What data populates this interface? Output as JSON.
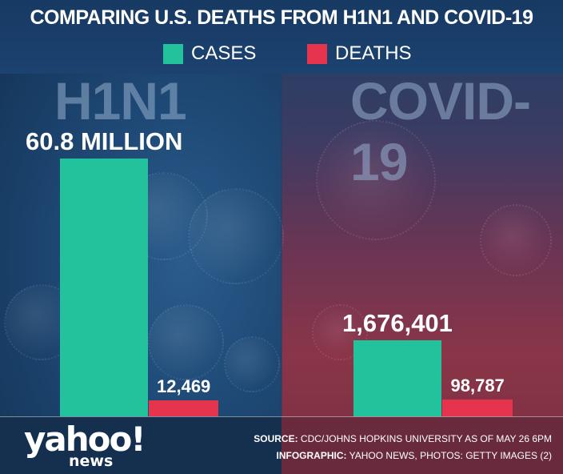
{
  "chart_data": {
    "type": "bar",
    "title": "COMPARING U.S. DEATHS FROM H1N1 AND COVID-19",
    "legend": [
      {
        "name": "CASES",
        "color": "#21c29c"
      },
      {
        "name": "DEATHS",
        "color": "#e6344f"
      }
    ],
    "legend_placement": "top-center",
    "groups": [
      {
        "name": "H1N1",
        "bars": [
          {
            "series": "CASES",
            "value": 60800000,
            "label": "60.8 MILLION"
          },
          {
            "series": "DEATHS",
            "value": 12469,
            "label": "12,469"
          }
        ]
      },
      {
        "name": "COVID-19",
        "bars": [
          {
            "series": "CASES",
            "value": 1676401,
            "label": "1,676,401"
          },
          {
            "series": "DEATHS",
            "value": 98787,
            "label": "98,787"
          }
        ]
      }
    ],
    "grid": false
  },
  "footer": {
    "logo_main": "yahoo!",
    "logo_sub": "news",
    "source_label": "SOURCE:",
    "source_text": "CDC/JOHNS HOPKINS UNIVERSITY AS OF MAY 26 6PM",
    "infographic_label": "INFOGRAPHIC:",
    "infographic_text": "YAHOO NEWS, PHOTOS: GETTY IMAGES (2)"
  }
}
